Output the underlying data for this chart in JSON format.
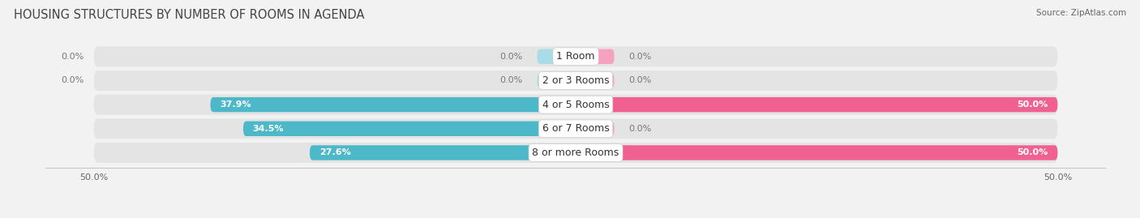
{
  "title": "HOUSING STRUCTURES BY NUMBER OF ROOMS IN AGENDA",
  "source": "Source: ZipAtlas.com",
  "categories": [
    "1 Room",
    "2 or 3 Rooms",
    "4 or 5 Rooms",
    "6 or 7 Rooms",
    "8 or more Rooms"
  ],
  "owner_values": [
    0.0,
    0.0,
    37.9,
    34.5,
    27.6
  ],
  "renter_values": [
    0.0,
    0.0,
    50.0,
    0.0,
    50.0
  ],
  "owner_color": "#4db8c8",
  "renter_color": "#f06090",
  "owner_color_light": "#a8dce8",
  "renter_color_light": "#f8a0c0",
  "bar_height": 0.62,
  "xlim": [
    -55,
    55
  ],
  "x_axis_left": -50,
  "x_axis_right": 50,
  "xtick_left_label": "50.0%",
  "xtick_right_label": "50.0%",
  "background_color": "#f2f2f2",
  "bar_bg_color": "#e4e4e4",
  "title_fontsize": 10.5,
  "source_fontsize": 7.5,
  "label_fontsize": 8,
  "category_fontsize": 9
}
